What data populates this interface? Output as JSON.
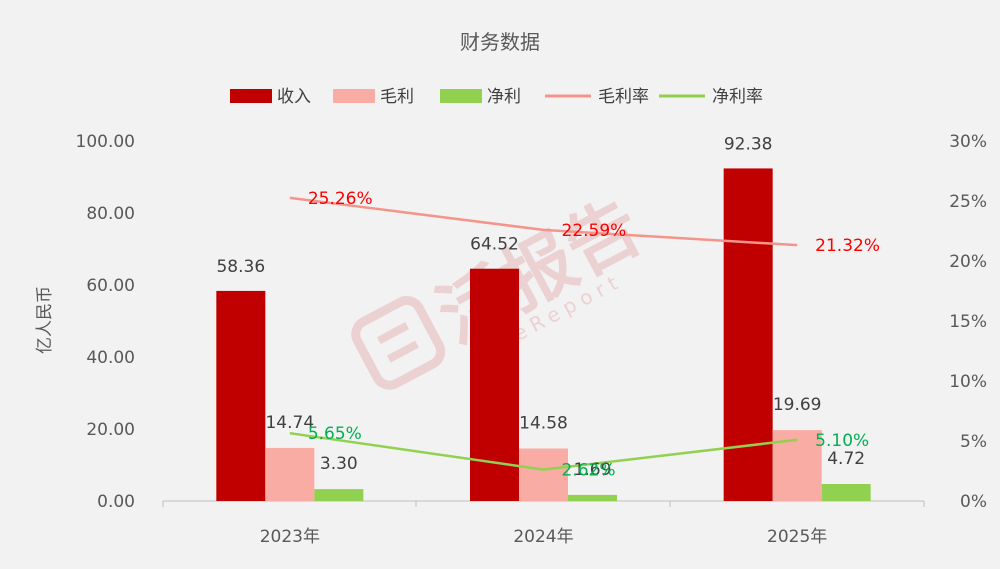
{
  "chart_data": {
    "type": "bar",
    "title": "财务数据",
    "categories": [
      "2023年",
      "2024年",
      "2025年"
    ],
    "ylabel": "亿人民币",
    "ylim": [
      0,
      100
    ],
    "y_ticks": [
      "0.00",
      "20.00",
      "40.00",
      "60.00",
      "80.00",
      "100.00"
    ],
    "y2lim": [
      0,
      30
    ],
    "y2_ticks": [
      "0%",
      "5%",
      "10%",
      "15%",
      "20%",
      "25%",
      "30%"
    ],
    "legend_position": "top",
    "grid": false,
    "series": [
      {
        "name": "收入",
        "kind": "bar",
        "axis": "left",
        "color": "#c00000",
        "values": [
          58.36,
          64.52,
          92.38
        ],
        "labels": [
          "58.36",
          "64.52",
          "92.38"
        ],
        "label_color": "#404040"
      },
      {
        "name": "毛利",
        "kind": "bar",
        "axis": "left",
        "color": "#f8aca3",
        "values": [
          14.74,
          14.58,
          19.69
        ],
        "labels": [
          "14.74",
          "14.58",
          "19.69"
        ],
        "label_color": "#404040"
      },
      {
        "name": "净利",
        "kind": "bar",
        "axis": "left",
        "color": "#92d050",
        "values": [
          3.3,
          1.69,
          4.72
        ],
        "labels": [
          "3.30",
          "1.69",
          "4.72"
        ],
        "label_color": "#404040"
      },
      {
        "name": "毛利率",
        "kind": "line",
        "axis": "right",
        "color": "#f4948c",
        "values": [
          25.26,
          22.59,
          21.32
        ],
        "labels": [
          "25.26%",
          "22.59%",
          "21.32%"
        ],
        "label_color": "#ff0000"
      },
      {
        "name": "净利率",
        "kind": "line",
        "axis": "right",
        "color": "#92d050",
        "values": [
          5.65,
          2.62,
          5.1
        ],
        "labels": [
          "5.65%",
          "2.62%",
          "5.10%"
        ],
        "label_color": "#00b050"
      }
    ]
  },
  "watermark": {
    "text": "活报告",
    "subtext": "LiveReport"
  }
}
